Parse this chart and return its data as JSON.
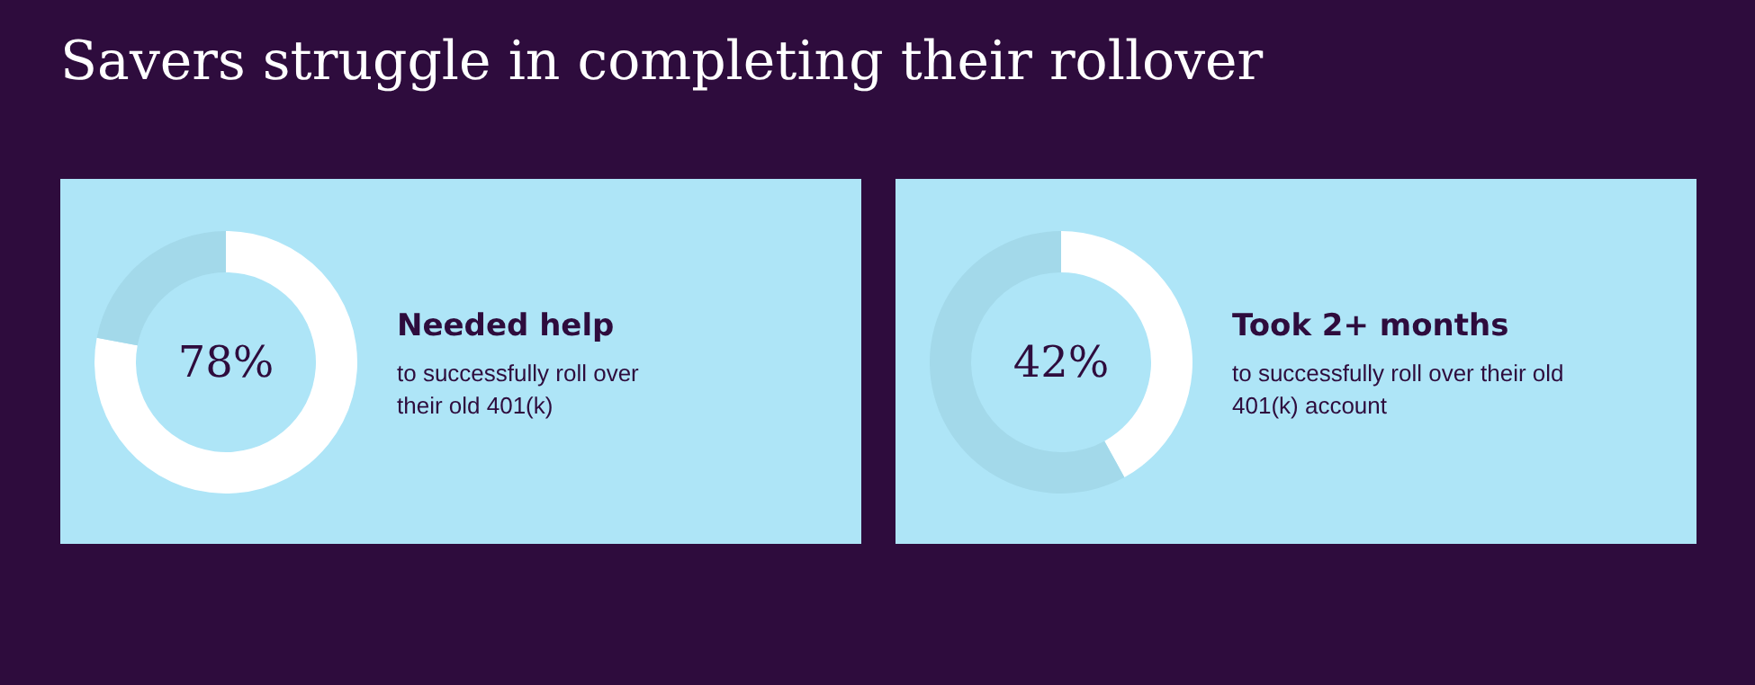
{
  "chart_data": [
    {
      "type": "donut",
      "title": "Savers struggle in completing their rollover",
      "categories": [
        null,
        null
      ],
      "values": [
        78,
        22
      ],
      "colors": [
        "#ffffff",
        "#a3d9ea"
      ],
      "annotations": [
        "78%",
        "Needed help",
        "to successfully roll over\ntheir old 401(k)"
      ]
    },
    {
      "type": "donut",
      "categories": [
        null,
        null
      ],
      "values": [
        42,
        58
      ],
      "colors": [
        "#ffffff",
        "#a3d9ea"
      ],
      "annotations": [
        "42%",
        "Took 2+ months",
        "to successfully roll over their old\n401(k) account"
      ]
    }
  ]
}
